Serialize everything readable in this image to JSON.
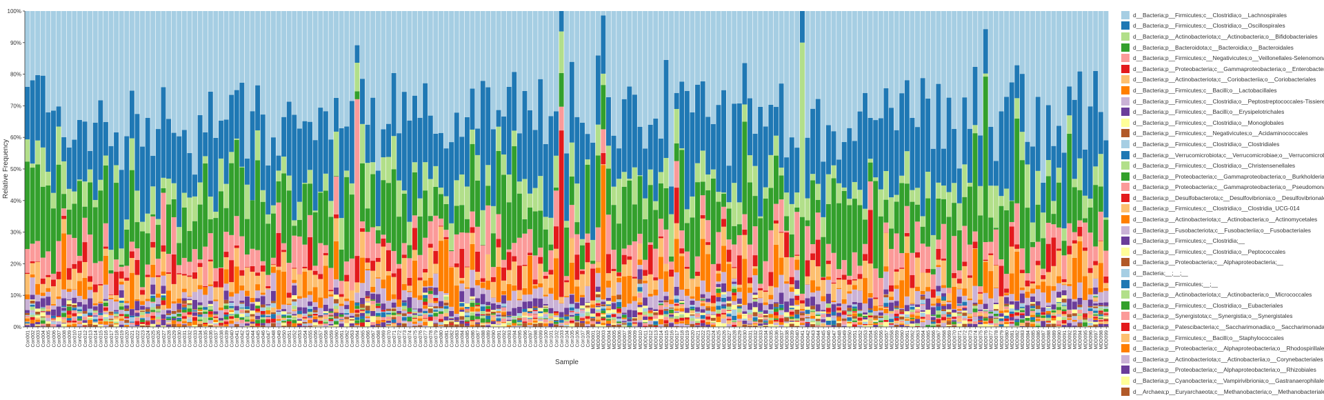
{
  "chart_data": {
    "type": "bar",
    "stacked": true,
    "normalized": true,
    "xlabel": "Sample",
    "ylabel": "Relative Frequency",
    "ylim": [
      0,
      1
    ],
    "yticks": [
      "0%",
      "10%",
      "20%",
      "30%",
      "40%",
      "50%",
      "60%",
      "70%",
      "80%",
      "90%",
      "100%"
    ],
    "grid": false,
    "legend_position": "right",
    "sample_groups": [
      {
        "prefix": "Con",
        "count": 108
      },
      {
        "prefix": "MDD",
        "count": 99
      }
    ],
    "bar_labels_note": "Sample ids run Con001–Con108 and MDD001–MDD099",
    "taxa": [
      {
        "name": "d__Bacteria;p__Firmicutes;c__Clostridia;o__Lachnospirales",
        "color": "#a6cee3"
      },
      {
        "name": "d__Bacteria;p__Firmicutes;c__Clostridia;o__Oscillospirales",
        "color": "#1f78b4"
      },
      {
        "name": "d__Bacteria;p__Actinobacteriota;c__Actinobacteria;o__Bifidobacteriales",
        "color": "#b2df8a"
      },
      {
        "name": "d__Bacteria;p__Bacteroidota;c__Bacteroidia;o__Bacteroidales",
        "color": "#33a02c"
      },
      {
        "name": "d__Bacteria;p__Firmicutes;c__Negativicutes;o__Veillonellales-Selenomonadales",
        "color": "#fb9a99"
      },
      {
        "name": "d__Bacteria;p__Proteobacteria;c__Gammaproteobacteria;o__Enterobacterales",
        "color": "#e31a1c"
      },
      {
        "name": "d__Bacteria;p__Actinobacteriota;c__Coriobacteriia;o__Coriobacteriales",
        "color": "#fdbf6f"
      },
      {
        "name": "d__Bacteria;p__Firmicutes;c__Bacilli;o__Lactobacillales",
        "color": "#ff7f00"
      },
      {
        "name": "d__Bacteria;p__Firmicutes;c__Clostridia;o__Peptostreptococcales-Tissierellales",
        "color": "#cab2d6"
      },
      {
        "name": "d__Bacteria;p__Firmicutes;c__Bacilli;o__Erysipelotrichales",
        "color": "#6a3d9a"
      },
      {
        "name": "d__Bacteria;p__Firmicutes;c__Clostridia;o__Monoglobales",
        "color": "#ffff99"
      },
      {
        "name": "d__Bacteria;p__Firmicutes;c__Negativicutes;o__Acidaminococcales",
        "color": "#b15928"
      },
      {
        "name": "d__Bacteria;p__Firmicutes;c__Clostridia;o__Clostridiales",
        "color": "#a6cee3"
      },
      {
        "name": "d__Bacteria;p__Verrucomicrobiota;c__Verrucomicrobiae;o__Verrucomicrobiales",
        "color": "#1f78b4"
      },
      {
        "name": "d__Bacteria;p__Firmicutes;c__Clostridia;o__Christensenellales",
        "color": "#b2df8a"
      },
      {
        "name": "d__Bacteria;p__Proteobacteria;c__Gammaproteobacteria;o__Burkholderiales",
        "color": "#33a02c"
      },
      {
        "name": "d__Bacteria;p__Proteobacteria;c__Gammaproteobacteria;o__Pseudomonadales",
        "color": "#fb9a99"
      },
      {
        "name": "d__Bacteria;p__Desulfobacterota;c__Desulfovibrionia;o__Desulfovibrionales",
        "color": "#e31a1c"
      },
      {
        "name": "d__Bacteria;p__Firmicutes;c__Clostridia;o__Clostridia_UCG-014",
        "color": "#fdbf6f"
      },
      {
        "name": "d__Bacteria;p__Actinobacteriota;c__Actinobacteria;o__Actinomycetales",
        "color": "#ff7f00"
      },
      {
        "name": "d__Bacteria;p__Fusobacteriota;c__Fusobacteriia;o__Fusobacteriales",
        "color": "#cab2d6"
      },
      {
        "name": "d__Bacteria;p__Firmicutes;c__Clostridia;__",
        "color": "#6a3d9a"
      },
      {
        "name": "d__Bacteria;p__Firmicutes;c__Clostridia;o__Peptococcales",
        "color": "#ffff99"
      },
      {
        "name": "d__Bacteria;p__Proteobacteria;c__Alphaproteobacteria;__",
        "color": "#b15928"
      },
      {
        "name": "d__Bacteria;__;__;__",
        "color": "#a6cee3"
      },
      {
        "name": "d__Bacteria;p__Firmicutes;__;__",
        "color": "#1f78b4"
      },
      {
        "name": "d__Bacteria;p__Actinobacteriota;c__Actinobacteria;o__Micrococcales",
        "color": "#b2df8a"
      },
      {
        "name": "d__Bacteria;p__Firmicutes;c__Clostridia;o__Eubacteriales",
        "color": "#33a02c"
      },
      {
        "name": "d__Bacteria;p__Synergistota;c__Synergistia;o__Synergistales",
        "color": "#fb9a99"
      },
      {
        "name": "d__Bacteria;p__Patescibacteria;c__Saccharimonadia;o__Saccharimonadales",
        "color": "#e31a1c"
      },
      {
        "name": "d__Bacteria;p__Firmicutes;c__Bacilli;o__Staphylococcales",
        "color": "#fdbf6f"
      },
      {
        "name": "d__Bacteria;p__Proteobacteria;c__Alphaproteobacteria;o__Rhodospirillales",
        "color": "#ff7f00"
      },
      {
        "name": "d__Bacteria;p__Actinobacteriota;c__Actinobacteriia;o__Corynebacteriales",
        "color": "#cab2d6"
      },
      {
        "name": "d__Bacteria;p__Proteobacteria;c__Alphaproteobacteria;o__Rhizobiales",
        "color": "#6a3d9a"
      },
      {
        "name": "d__Bacteria;p__Cyanobacteria;c__Vampirivibrionia;o__Gastranaerophilales",
        "color": "#ffff99"
      },
      {
        "name": "d__Archaea;p__Euryarchaeota;c__Methanobacteria;o__Methanobacteriales",
        "color": "#b15928"
      }
    ],
    "samples_summary": [
      {
        "label": "Con001",
        "Lachnospirales": 0.26,
        "Oscillospirales": 0.18,
        "Bacteroidales": 0.3
      },
      {
        "label": "Con021",
        "Lachnospirales": 0.2,
        "Oscillospirales": 0.12,
        "Bacteroidales": 0.18
      },
      {
        "label": "Con064",
        "Lachnospirales": 0.12,
        "Veillonellales-Selenomonadales": 0.55
      },
      {
        "label": "Con103",
        "Lachnospirales": 0.0,
        "Enterobacterales": 0.72,
        "Bifidobacteriales": 0.18
      },
      {
        "label": "MDD003",
        "Lachnospirales": 0.02,
        "Lactobacillales": 0.6,
        "Enterobacterales": 0.05
      },
      {
        "label": "MDD041",
        "Lachnospirales": 0.0,
        "Bifidobacteriales": 0.62
      },
      {
        "label": "MDD076",
        "Lachnospirales": 0.06,
        "Bacteroidales": 0.55
      }
    ]
  }
}
